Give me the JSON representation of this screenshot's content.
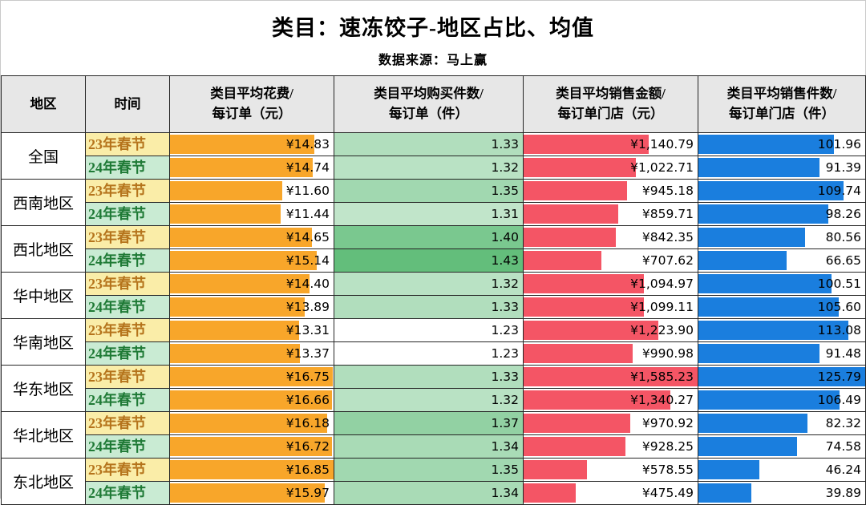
{
  "page": {
    "title": "类目：速冻饺子-地区占比、均值",
    "subtitle": "数据来源：马上赢"
  },
  "table": {
    "headers": [
      "地区",
      "时间",
      "类目平均花费/\n每订单（元）",
      "类目平均购买件数/\n每订单（件）",
      "类目平均销售金额/\n每订单门店（元）",
      "类目平均销售件数/\n每订单门店（件）"
    ]
  },
  "periods": [
    {
      "label": "23年春节",
      "bg": "#FAEDA8",
      "color": "#B5741C"
    },
    {
      "label": "24年春节",
      "bg": "#C9EBD3",
      "color": "#1F7A36"
    }
  ],
  "colors": {
    "spend_bar": "#F8A62A",
    "amount_bar": "#F45565",
    "units_bar": "#1A7EDE",
    "header_bg": "#E7E7E7",
    "border": "#262626",
    "currency_symbol": "¥"
  },
  "chart_data": {
    "type": "table",
    "title": "类目：速冻饺子-地区占比、均值",
    "subtitle": "数据来源：马上赢",
    "columns": [
      "地区",
      "时间",
      "类目平均花费/每订单（元）",
      "类目平均购买件数/每订单（件）",
      "类目平均销售金额/每订单门店（元）",
      "类目平均销售件数/每订单门店（件）"
    ],
    "bar_scale": {
      "spend": {
        "min": 0,
        "max": 16.85
      },
      "amount": {
        "min": 0,
        "max": 1585.23
      },
      "units": {
        "min": 0,
        "max": 125.79
      }
    },
    "items_color_scale": {
      "min": 1.23,
      "max": 1.43,
      "from": "#FFFFFF",
      "to": "#63BE7B"
    },
    "groups": [
      {
        "region": "全国",
        "rows": [
          {
            "period": "23年春节",
            "spend": 14.83,
            "items": 1.33,
            "amount": 1140.79,
            "units": 101.96
          },
          {
            "period": "24年春节",
            "spend": 14.74,
            "items": 1.32,
            "amount": 1022.71,
            "units": 91.39
          }
        ]
      },
      {
        "region": "西南地区",
        "rows": [
          {
            "period": "23年春节",
            "spend": 11.6,
            "items": 1.35,
            "amount": 945.18,
            "units": 109.74
          },
          {
            "period": "24年春节",
            "spend": 11.44,
            "items": 1.31,
            "amount": 859.71,
            "units": 98.26
          }
        ]
      },
      {
        "region": "西北地区",
        "rows": [
          {
            "period": "23年春节",
            "spend": 14.65,
            "items": 1.4,
            "amount": 842.35,
            "units": 80.56
          },
          {
            "period": "24年春节",
            "spend": 15.14,
            "items": 1.43,
            "amount": 707.62,
            "units": 66.65
          }
        ]
      },
      {
        "region": "华中地区",
        "rows": [
          {
            "period": "23年春节",
            "spend": 14.4,
            "items": 1.32,
            "amount": 1094.97,
            "units": 100.51
          },
          {
            "period": "24年春节",
            "spend": 13.89,
            "items": 1.33,
            "amount": 1099.11,
            "units": 105.6
          }
        ]
      },
      {
        "region": "华南地区",
        "rows": [
          {
            "period": "23年春节",
            "spend": 13.31,
            "items": 1.23,
            "amount": 1223.9,
            "units": 113.08
          },
          {
            "period": "24年春节",
            "spend": 13.37,
            "items": 1.23,
            "amount": 990.98,
            "units": 91.48
          }
        ]
      },
      {
        "region": "华东地区",
        "rows": [
          {
            "period": "23年春节",
            "spend": 16.75,
            "items": 1.33,
            "amount": 1585.23,
            "units": 125.79
          },
          {
            "period": "24年春节",
            "spend": 16.66,
            "items": 1.32,
            "amount": 1340.27,
            "units": 106.49
          }
        ]
      },
      {
        "region": "华北地区",
        "rows": [
          {
            "period": "23年春节",
            "spend": 16.18,
            "items": 1.37,
            "amount": 970.92,
            "units": 82.32
          },
          {
            "period": "24年春节",
            "spend": 16.72,
            "items": 1.34,
            "amount": 928.25,
            "units": 74.58
          }
        ]
      },
      {
        "region": "东北地区",
        "rows": [
          {
            "period": "23年春节",
            "spend": 16.85,
            "items": 1.35,
            "amount": 578.55,
            "units": 46.24
          },
          {
            "period": "24年春节",
            "spend": 15.97,
            "items": 1.34,
            "amount": 475.49,
            "units": 39.89
          }
        ]
      }
    ]
  }
}
